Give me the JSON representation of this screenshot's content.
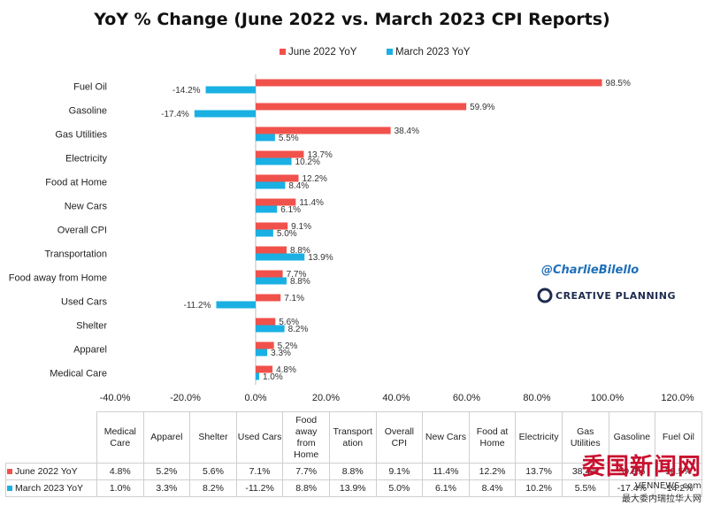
{
  "chart_data": {
    "type": "bar",
    "orientation": "horizontal",
    "title": "YoY % Change (June 2022 vs. March 2023 CPI Reports)",
    "categories": [
      "Fuel Oil",
      "Gasoline",
      "Gas Utilities",
      "Electricity",
      "Food at Home",
      "New Cars",
      "Overall CPI",
      "Transportation",
      "Food away from Home",
      "Used Cars",
      "Shelter",
      "Apparel",
      "Medical Care"
    ],
    "series": [
      {
        "name": "June 2022 YoY",
        "color": "#f0524b",
        "values": [
          98.5,
          59.9,
          38.4,
          13.7,
          12.2,
          11.4,
          9.1,
          8.8,
          7.7,
          7.1,
          5.6,
          5.2,
          4.8
        ],
        "labels": [
          "98.5%",
          "59.9%",
          "38.4%",
          "13.7%",
          "12.2%",
          "11.4%",
          "9.1%",
          "8.8%",
          "7.7%",
          "7.1%",
          "5.6%",
          "5.2%",
          "4.8%"
        ]
      },
      {
        "name": "March 2023 YoY",
        "color": "#1ab0e3",
        "values": [
          -14.2,
          -17.4,
          5.5,
          10.2,
          8.4,
          6.1,
          5.0,
          13.9,
          8.8,
          -11.2,
          8.2,
          3.3,
          1.0
        ],
        "labels": [
          "-14.2%",
          "-17.4%",
          "5.5%",
          "10.2%",
          "8.4%",
          "6.1%",
          "5.0%",
          "13.9%",
          "8.8%",
          "-11.2%",
          "8.2%",
          "3.3%",
          "1.0%"
        ]
      }
    ],
    "xlim": [
      -40,
      120
    ],
    "xticks": [
      -40,
      -20,
      0,
      20,
      40,
      60,
      80,
      100,
      120
    ],
    "xtick_labels": [
      "-40.0%",
      "-20.0%",
      "0.0%",
      "20.0%",
      "40.0%",
      "60.0%",
      "80.0%",
      "100.0%",
      "120.0%"
    ],
    "legend": "top-center",
    "grid": false,
    "table": {
      "headers": [
        "Medical Care",
        "Apparel",
        "Shelter",
        "Used Cars",
        "Food away from Home",
        "Transportation",
        "Overall CPI",
        "New Cars",
        "Food at Home",
        "Electricity",
        "Gas Utilities",
        "Gasoline",
        "Fuel Oil"
      ],
      "header_display": [
        "Medical\nCare",
        "Apparel",
        "Shelter",
        "Used Cars",
        "Food\naway\nfrom\nHome",
        "Transport\nation",
        "Overall\nCPI",
        "New Cars",
        "Food at\nHome",
        "Electricity",
        "Gas\nUtilities",
        "Gasoline",
        "Fuel Oil"
      ],
      "rows": [
        {
          "label": "June 2022 YoY",
          "values": [
            "4.8%",
            "5.2%",
            "5.6%",
            "7.1%",
            "7.7%",
            "8.8%",
            "9.1%",
            "11.4%",
            "12.2%",
            "13.7%",
            "38.4%",
            "59.9%",
            "98.5%"
          ]
        },
        {
          "label": "March 2023 YoY",
          "values": [
            "1.0%",
            "3.3%",
            "8.2%",
            "-11.2%",
            "8.8%",
            "13.9%",
            "5.0%",
            "6.1%",
            "8.4%",
            "10.2%",
            "5.5%",
            "-17.4%",
            "-14.2%"
          ]
        }
      ]
    }
  },
  "annotations": {
    "handle": "@CharlieBilello",
    "brand": "CREATIVE PLANNING"
  },
  "watermark": {
    "main": "委国新闻网",
    "domain": "VENNEWS.com",
    "sub": "最大委内瑞拉华人网"
  }
}
